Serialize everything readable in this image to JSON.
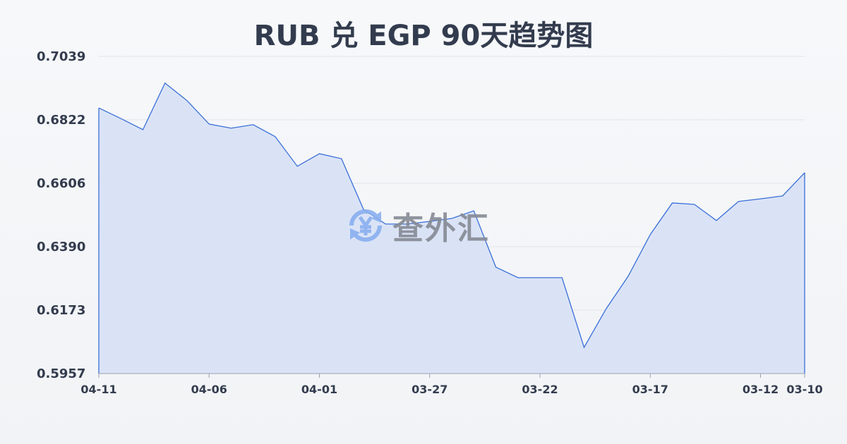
{
  "chart_data": {
    "type": "area",
    "title": "RUB 兑 EGP 90天趋势图",
    "xlabel": "",
    "ylabel": "",
    "x": [
      "04-11",
      "04-10",
      "04-09",
      "04-08",
      "04-07",
      "04-06",
      "04-05",
      "04-04",
      "04-03",
      "04-02",
      "04-01",
      "03-31",
      "03-30",
      "03-29",
      "03-28",
      "03-27",
      "03-26",
      "03-25",
      "03-24",
      "03-23",
      "03-22",
      "03-21",
      "03-20",
      "03-19",
      "03-18",
      "03-17",
      "03-16",
      "03-15",
      "03-14",
      "03-13",
      "03-12",
      "03-11",
      "03-10"
    ],
    "values": [
      0.6863,
      0.6827,
      0.6789,
      0.6948,
      0.6888,
      0.6808,
      0.6794,
      0.6806,
      0.6765,
      0.6664,
      0.6707,
      0.669,
      0.6517,
      0.6467,
      0.6467,
      0.6476,
      0.6486,
      0.6512,
      0.632,
      0.6284,
      0.6284,
      0.6284,
      0.6046,
      0.6178,
      0.6289,
      0.6431,
      0.6539,
      0.6534,
      0.6479,
      0.6544,
      0.6553,
      0.6563,
      0.6642
    ],
    "x_tick_labels": [
      "04-11",
      "04-06",
      "04-01",
      "03-27",
      "03-22",
      "03-17",
      "03-12",
      "03-10"
    ],
    "y_tick_labels": [
      "0.7039",
      "0.6822",
      "0.6606",
      "0.6390",
      "0.6173",
      "0.5957"
    ],
    "ylim": [
      0.5957,
      0.7039
    ],
    "grid": true,
    "line_color": "#3a6fd8",
    "fill_color": "#d8e2f5"
  },
  "watermark": {
    "text": "查外汇",
    "icon": "yen-exchange-icon",
    "color": "#8ab0f0"
  }
}
